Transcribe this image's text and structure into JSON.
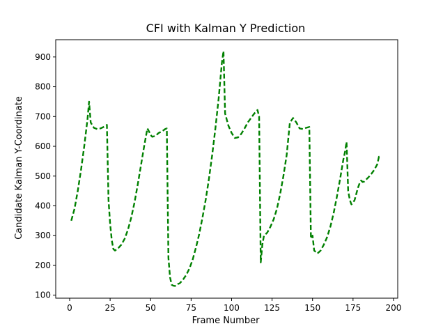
{
  "chart_data": {
    "type": "line",
    "title": "CFI with Kalman Y Prediction",
    "xlabel": "Frame Number",
    "ylabel": "Candidate Kalman Y-Coordinate",
    "xlim": [
      -8.6,
      202.6
    ],
    "ylim": [
      90,
      958
    ],
    "xticks": [
      0,
      25,
      50,
      75,
      100,
      125,
      150,
      175,
      200
    ],
    "yticks": [
      100,
      200,
      300,
      400,
      500,
      600,
      700,
      800,
      900
    ],
    "grid": false,
    "series": [
      {
        "color": "#008000",
        "line_style": "dashed",
        "x": [
          1,
          3,
          5,
          7,
          9,
          11,
          12,
          13,
          15,
          17,
          19,
          21,
          22,
          23,
          24,
          25,
          26,
          27,
          28,
          30,
          32,
          34,
          36,
          38,
          40,
          42,
          44,
          46,
          48,
          49,
          50,
          51,
          53,
          55,
          57,
          59,
          60,
          61,
          62,
          63,
          64,
          65,
          66,
          67,
          68,
          70,
          72,
          74,
          76,
          78,
          80,
          82,
          84,
          86,
          88,
          90,
          92,
          94,
          95,
          96,
          97,
          98,
          100,
          102,
          104,
          106,
          108,
          110,
          112,
          114,
          116,
          117,
          118,
          119,
          120,
          121,
          122,
          124,
          126,
          128,
          130,
          132,
          134,
          136,
          138,
          140,
          142,
          144,
          146,
          148,
          149,
          150,
          151,
          152,
          153,
          155,
          157,
          159,
          161,
          163,
          165,
          167,
          169,
          170,
          171,
          172,
          173,
          174,
          175,
          176,
          177,
          178,
          179,
          180,
          181,
          182,
          183,
          184,
          186,
          188,
          190,
          191,
          192
        ],
        "y": [
          350,
          390,
          450,
          520,
          600,
          690,
          750,
          680,
          662,
          658,
          660,
          665,
          668,
          672,
          420,
          340,
          285,
          255,
          250,
          258,
          270,
          290,
          320,
          360,
          410,
          470,
          535,
          600,
          660,
          650,
          638,
          632,
          635,
          645,
          650,
          658,
          660,
          225,
          160,
          135,
          132,
          131,
          132,
          138,
          140,
          152,
          168,
          190,
          220,
          260,
          305,
          360,
          420,
          490,
          570,
          660,
          760,
          880,
          920,
          710,
          690,
          670,
          645,
          628,
          630,
          642,
          660,
          680,
          695,
          710,
          722,
          700,
          210,
          270,
          300,
          305,
          310,
          330,
          355,
          390,
          440,
          500,
          570,
          680,
          695,
          680,
          660,
          658,
          662,
          665,
          290,
          300,
          250,
          245,
          240,
          250,
          270,
          295,
          330,
          375,
          430,
          490,
          555,
          580,
          615,
          450,
          420,
          405,
          410,
          420,
          440,
          460,
          475,
          485,
          480,
          482,
          488,
          493,
          505,
          520,
          540,
          565,
          560
        ]
      }
    ]
  }
}
